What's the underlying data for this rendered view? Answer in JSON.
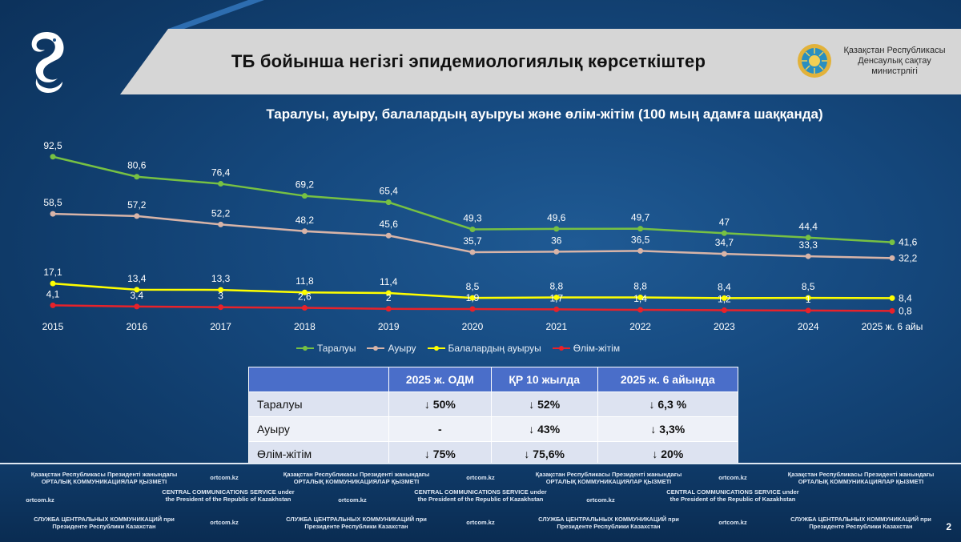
{
  "header": {
    "title": "ТБ бойынша негізгі эпидемиологиялық көрсеткіштер",
    "ministry": "Қазақстан Республикасы Денсаулық сақтау министрлігі"
  },
  "colors": {
    "taraluy": "#77c143",
    "auyru": "#d8b4a8",
    "balalar": "#ffff00",
    "olim": "#e8222a",
    "table_header": "#4a6ec9"
  },
  "chart_data": {
    "type": "line",
    "title": "Таралуы, ауыру, балалардың ауыруы және өлім-жітім (100 мың  адамға шаққанда)",
    "categories": [
      "2015",
      "2016",
      "2017",
      "2018",
      "2019",
      "2020",
      "2021",
      "2022",
      "2023",
      "2024",
      "2025 ж. 6 айы"
    ],
    "series": [
      {
        "name": "Таралуы",
        "color": "#77c143",
        "values": [
          92.5,
          80.6,
          76.4,
          69.2,
          65.4,
          49.3,
          49.6,
          49.7,
          47,
          44.4,
          41.6
        ],
        "labels": [
          "92,5",
          "80,6",
          "76,4",
          "69,2",
          "65,4",
          "49,3",
          "49,6",
          "49,7",
          "47",
          "44,4",
          "41,6"
        ]
      },
      {
        "name": "Ауыру",
        "color": "#d8b4a8",
        "values": [
          58.5,
          57.2,
          52.2,
          48.2,
          45.6,
          35.7,
          36,
          36.5,
          34.7,
          33.3,
          32.2
        ],
        "labels": [
          "58,5",
          "57,2",
          "52,2",
          "48,2",
          "45,6",
          "35,7",
          "36",
          "36,5",
          "34,7",
          "33,3",
          "32,2"
        ]
      },
      {
        "name": "Балалардың ауыруы",
        "color": "#ffff00",
        "values": [
          17.1,
          13.4,
          13.3,
          11.8,
          11.4,
          8.5,
          8.8,
          8.8,
          8.4,
          8.5,
          8.4
        ],
        "labels": [
          "17,1",
          "13,4",
          "13,3",
          "11,8",
          "11,4",
          "8,5",
          "8,8",
          "8,8",
          "8,4",
          "8,5",
          "8,4"
        ]
      },
      {
        "name": "Өлім-жітім",
        "color": "#e8222a",
        "values": [
          4.1,
          3.4,
          3,
          2.6,
          2,
          1.9,
          1.7,
          1.4,
          1.2,
          1,
          0.8
        ],
        "labels": [
          "4,1",
          "3,4",
          "3",
          "2,6",
          "2",
          "1,9",
          "1,7",
          "1,4",
          "1,2",
          "1",
          "0,8"
        ]
      }
    ],
    "ylim": [
      0,
      100
    ],
    "legend": "bottom"
  },
  "table": {
    "headers": [
      "",
      "2025 ж. ОДМ",
      "ҚР 10 жылда",
      "2025 ж. 6 айында"
    ],
    "rows": [
      {
        "label": "Таралуы",
        "cells": [
          "↓ 50%",
          "↓ 52%",
          "↓ 6,3 %"
        ]
      },
      {
        "label": "Ауыру",
        "cells": [
          "-",
          "↓ 43%",
          "↓ 3,3%"
        ]
      },
      {
        "label": "Өлім-жітім",
        "cells": [
          "↓ 75%",
          "↓ 75,6%",
          "↓ 20%"
        ]
      }
    ]
  },
  "footer": {
    "kz": "Қазақстан Республикасы Президенті жанындағы ОРТАЛЫҚ КОММУНИКАЦИЯЛАР ҚЫЗМЕТІ",
    "en": "CENTRAL COMMUNICATIONS SERVICE under the President of the Republic of Kazakhstan",
    "ru": "СЛУЖБА ЦЕНТРАЛЬНЫХ КОММУНИКАЦИЙ при Президенте Республики Казахстан",
    "site": "ortcom.kz",
    "page": "2"
  }
}
